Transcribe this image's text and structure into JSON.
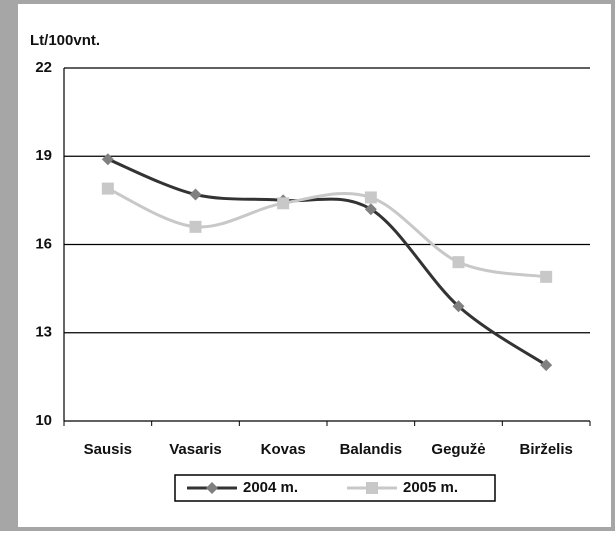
{
  "chart_data": {
    "type": "line",
    "y_label": "Lt/100vnt.",
    "categories": [
      "Sausis",
      "Vasaris",
      "Kovas",
      "Balandis",
      "Gegužė",
      "Birželis"
    ],
    "series": [
      {
        "name": "2004 m.",
        "color": "#333333",
        "marker": "diamond",
        "values": [
          18.9,
          17.7,
          17.5,
          17.2,
          13.9,
          11.9
        ]
      },
      {
        "name": "2005 m.",
        "color": "#c8c8c8",
        "marker": "square",
        "values": [
          17.9,
          16.6,
          17.4,
          17.6,
          15.4,
          14.9
        ]
      }
    ],
    "ylim": [
      10,
      22
    ],
    "yticks": [
      10,
      13,
      16,
      19,
      22
    ],
    "grid": true,
    "smooth": true,
    "legend": "bottom"
  }
}
